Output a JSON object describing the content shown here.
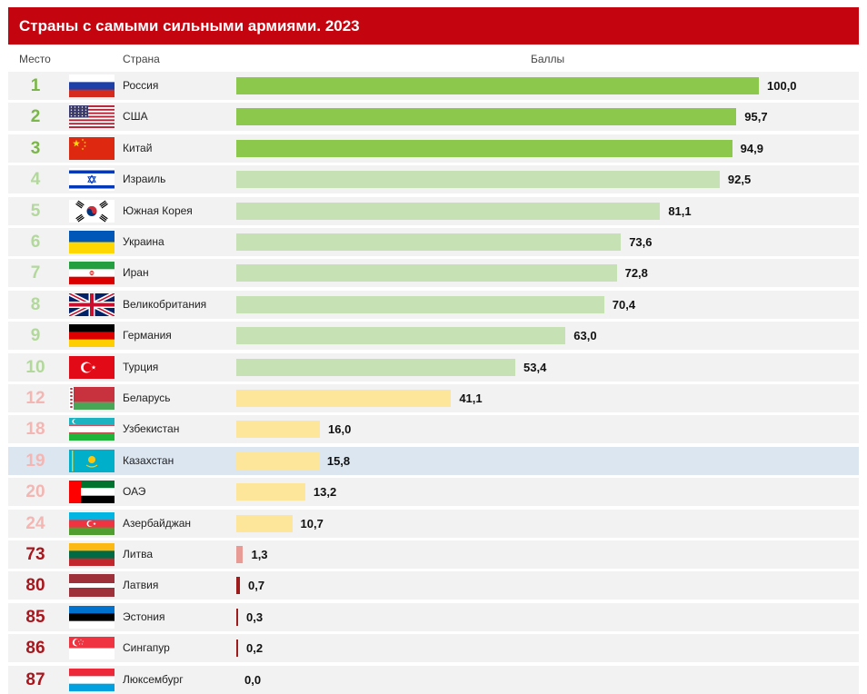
{
  "header": {
    "title": "Страны с самыми сильными армиями. 2023"
  },
  "columns": {
    "place": "Место",
    "country": "Страна",
    "score": "Баллы"
  },
  "colors": {
    "header_bg": "#c4040f",
    "bar_top3": "#8cc84b",
    "bar_top10": "#c6e2b5",
    "bar_mid": "#fde69a",
    "bar_low": "#e89a95",
    "bar_lowest": "#9e1b1b",
    "row_bg": "#f2f2f2",
    "row_highlight": "#dbe6f1",
    "rank_top3": "#7ab648",
    "rank_top10": "#b2d89b",
    "rank_mid": "#f3b6b2",
    "rank_low": "#a8171d"
  },
  "chart_data": {
    "type": "bar",
    "orientation": "horizontal",
    "title": "Страны с самыми сильными армиями. 2023",
    "xlabel": "Баллы",
    "xlim": [
      0,
      100
    ],
    "grid": false,
    "rows": [
      {
        "rank": "1",
        "country": "Россия",
        "value": 100.0,
        "label": "100,0",
        "flag": "russia-flag",
        "tier": "top3"
      },
      {
        "rank": "2",
        "country": "США",
        "value": 95.7,
        "label": "95,7",
        "flag": "usa-flag",
        "tier": "top3"
      },
      {
        "rank": "3",
        "country": "Китай",
        "value": 94.9,
        "label": "94,9",
        "flag": "china-flag",
        "tier": "top3"
      },
      {
        "rank": "4",
        "country": "Израиль",
        "value": 92.5,
        "label": "92,5",
        "flag": "israel-flag",
        "tier": "top10"
      },
      {
        "rank": "5",
        "country": "Южная Корея",
        "value": 81.1,
        "label": "81,1",
        "flag": "south-korea-flag",
        "tier": "top10"
      },
      {
        "rank": "6",
        "country": "Украина",
        "value": 73.6,
        "label": "73,6",
        "flag": "ukraine-flag",
        "tier": "top10"
      },
      {
        "rank": "7",
        "country": "Иран",
        "value": 72.8,
        "label": "72,8",
        "flag": "iran-flag",
        "tier": "top10"
      },
      {
        "rank": "8",
        "country": "Великобритания",
        "value": 70.4,
        "label": "70,4",
        "flag": "uk-flag",
        "tier": "top10"
      },
      {
        "rank": "9",
        "country": "Германия",
        "value": 63.0,
        "label": "63,0",
        "flag": "germany-flag",
        "tier": "top10"
      },
      {
        "rank": "10",
        "country": "Турция",
        "value": 53.4,
        "label": "53,4",
        "flag": "turkey-flag",
        "tier": "top10"
      },
      {
        "rank": "12",
        "country": "Беларусь",
        "value": 41.1,
        "label": "41,1",
        "flag": "belarus-flag",
        "tier": "mid"
      },
      {
        "rank": "18",
        "country": "Узбекистан",
        "value": 16.0,
        "label": "16,0",
        "flag": "uzbekistan-flag",
        "tier": "mid"
      },
      {
        "rank": "19",
        "country": "Казахстан",
        "value": 15.8,
        "label": "15,8",
        "flag": "kazakhstan-flag",
        "tier": "mid",
        "highlight": true
      },
      {
        "rank": "20",
        "country": "ОАЭ",
        "value": 13.2,
        "label": "13,2",
        "flag": "uae-flag",
        "tier": "mid"
      },
      {
        "rank": "24",
        "country": "Азербайджан",
        "value": 10.7,
        "label": "10,7",
        "flag": "azerbaijan-flag",
        "tier": "mid"
      },
      {
        "rank": "73",
        "country": "Литва",
        "value": 1.3,
        "label": "1,3",
        "flag": "lithuania-flag",
        "tier": "low"
      },
      {
        "rank": "80",
        "country": "Латвия",
        "value": 0.7,
        "label": "0,7",
        "flag": "latvia-flag",
        "tier": "lowest"
      },
      {
        "rank": "85",
        "country": "Эстония",
        "value": 0.3,
        "label": "0,3",
        "flag": "estonia-flag",
        "tier": "lowest"
      },
      {
        "rank": "86",
        "country": "Сингапур",
        "value": 0.2,
        "label": "0,2",
        "flag": "singapore-flag",
        "tier": "lowest"
      },
      {
        "rank": "87",
        "country": "Люксембург",
        "value": 0.0,
        "label": "0,0",
        "flag": "luxembourg-flag",
        "tier": "lowest"
      }
    ]
  }
}
